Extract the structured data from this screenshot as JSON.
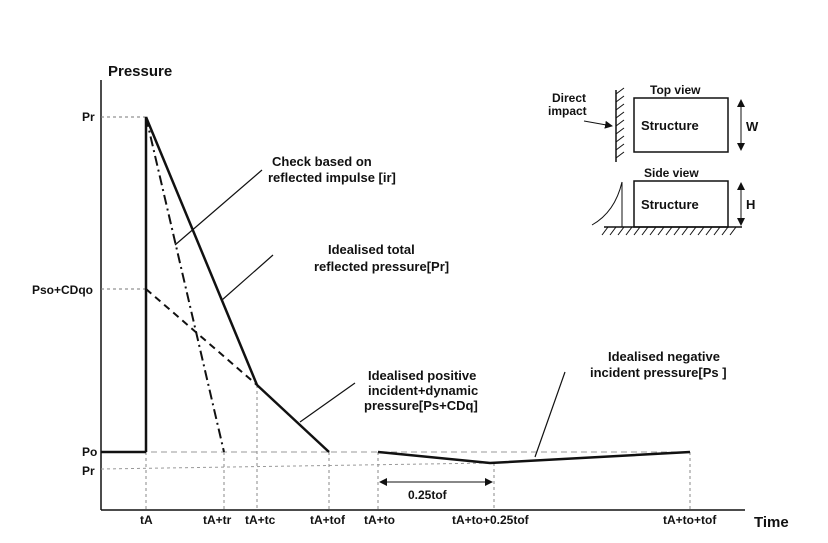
{
  "axes": {
    "y_label": "Pressure",
    "x_label": "Time"
  },
  "y_ticks": {
    "pr": "Pr",
    "pso_cdqo": "Pso+CDqo",
    "po": "Po",
    "pr_neg": "Pr"
  },
  "x_ticks": {
    "ta": "tA",
    "ta_tr": "tA+tr",
    "ta_tc": "tA+tc",
    "ta_tof": "tA+tof",
    "ta_to": "tA+to",
    "ta_to_025tof": "tA+to+0.25tof",
    "ta_to_tof": "tA+to+tof"
  },
  "annotations": {
    "check_line1": "Check based on",
    "check_line2": "reflected impulse [ir]",
    "total_line1": "Idealised total",
    "total_line2": "reflected pressure[Pr]",
    "pos_line1": "Idealised positive",
    "pos_line2": "incident+dynamic",
    "pos_line3": "pressure[Ps+CDq]",
    "neg_line1": "Idealised negative",
    "neg_line2": "incident pressure[Ps ]",
    "dim_label": "0.25tof"
  },
  "inset": {
    "direct_impact_line1": "Direct",
    "direct_impact_line2": "impact",
    "top_view": "Top view",
    "side_view": "Side view",
    "structure_top": "Structure",
    "structure_side": "Structure",
    "w": "W",
    "h": "H"
  }
}
